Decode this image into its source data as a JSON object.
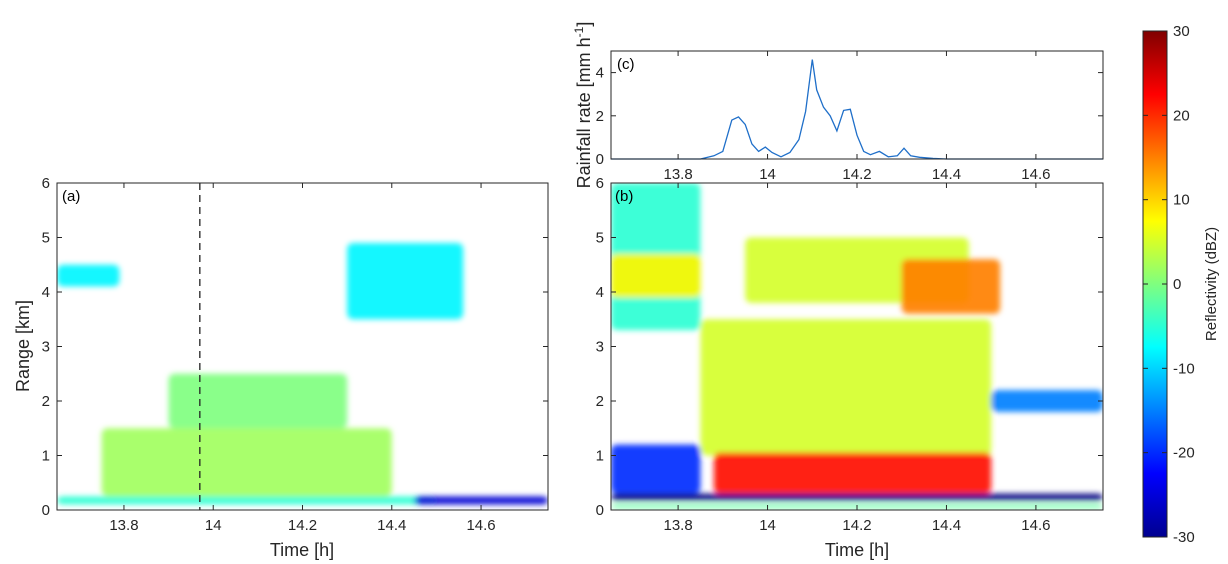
{
  "chart_data": [
    {
      "id": "a",
      "type": "heatmap",
      "panel_label": "(a)",
      "xlabel": "Time [h]",
      "ylabel": "Range [km]",
      "xlim": [
        13.65,
        14.75
      ],
      "ylim": [
        0,
        6
      ],
      "xticks": [
        13.8,
        14,
        14.2,
        14.4,
        14.6
      ],
      "xtick_labels": [
        "13.8",
        "14",
        "14.2",
        "14.4",
        "14.6"
      ],
      "yticks": [
        0,
        1,
        2,
        3,
        4,
        5,
        6
      ],
      "ytick_labels": [
        "0",
        "1",
        "2",
        "3",
        "4",
        "5",
        "6"
      ],
      "dashed_line_x": 13.97,
      "echo_regions": [
        {
          "dbz": -5,
          "x0": 13.65,
          "x1": 14.5,
          "y0": 0.1,
          "y1": 0.25
        },
        {
          "dbz": 2,
          "x0": 13.75,
          "x1": 14.4,
          "y0": 0.25,
          "y1": 1.5
        },
        {
          "dbz": 0,
          "x0": 13.9,
          "x1": 14.3,
          "y0": 1.5,
          "y1": 2.5
        },
        {
          "dbz": -8,
          "x0": 14.3,
          "x1": 14.56,
          "y0": 3.5,
          "y1": 4.9
        },
        {
          "dbz": -8,
          "x0": 13.65,
          "x1": 13.79,
          "y0": 4.1,
          "y1": 4.5
        },
        {
          "dbz": -25,
          "x0": 14.45,
          "x1": 14.75,
          "y0": 0.1,
          "y1": 0.25
        }
      ]
    },
    {
      "id": "b",
      "type": "heatmap",
      "panel_label": "(b)",
      "xlabel": "Time [h]",
      "ylabel": "",
      "xlim": [
        13.65,
        14.75
      ],
      "ylim": [
        0,
        6
      ],
      "xticks": [
        13.8,
        14,
        14.2,
        14.4,
        14.6
      ],
      "xtick_labels": [
        "13.8",
        "14",
        "14.2",
        "14.4",
        "14.6"
      ],
      "yticks": [
        0,
        1,
        2,
        3,
        4,
        5,
        6
      ],
      "ytick_labels": [
        "0",
        "1",
        "2",
        "3",
        "4",
        "5",
        "6"
      ],
      "echo_regions": [
        {
          "dbz": -5,
          "x0": 13.65,
          "x1": 13.85,
          "y0": 3.3,
          "y1": 6
        },
        {
          "dbz": 8,
          "x0": 13.65,
          "x1": 13.85,
          "y0": 3.9,
          "y1": 4.7
        },
        {
          "dbz": 5,
          "x0": 13.95,
          "x1": 14.45,
          "y0": 3.8,
          "y1": 5.0
        },
        {
          "dbz": 15,
          "x0": 14.3,
          "x1": 14.52,
          "y0": 3.6,
          "y1": 4.6
        },
        {
          "dbz": 5,
          "x0": 13.85,
          "x1": 14.5,
          "y0": 1.0,
          "y1": 3.5
        },
        {
          "dbz": 22,
          "x0": 13.88,
          "x1": 14.5,
          "y0": 0.3,
          "y1": 1.05
        },
        {
          "dbz": -20,
          "x0": 13.65,
          "x1": 13.85,
          "y0": 0.3,
          "y1": 1.2
        },
        {
          "dbz": -15,
          "x0": 14.5,
          "x1": 14.75,
          "y0": 1.8,
          "y1": 2.2
        },
        {
          "dbz": -30,
          "x0": 13.65,
          "x1": 14.75,
          "y0": 0.17,
          "y1": 0.3
        },
        {
          "dbz": -2,
          "x0": 13.65,
          "x1": 14.75,
          "y0": 0.03,
          "y1": 0.1
        }
      ]
    },
    {
      "id": "c",
      "type": "line",
      "panel_label": "(c)",
      "xlabel": "",
      "ylabel": "Rainfall rate [mm h",
      "ylabel_superscript": "-1",
      "ylabel_suffix": "]",
      "xlim": [
        13.65,
        14.75
      ],
      "ylim": [
        0,
        5
      ],
      "xticks": [
        13.8,
        14,
        14.2,
        14.4,
        14.6
      ],
      "xtick_labels": [
        "13.8",
        "14",
        "14.2",
        "14.4",
        "14.6"
      ],
      "yticks": [
        0,
        2,
        4
      ],
      "ytick_labels": [
        "0",
        "2",
        "4"
      ],
      "line_color": "#1f6fc9",
      "series": [
        {
          "x": [
            13.65,
            13.85,
            13.88,
            13.9,
            13.92,
            13.935,
            13.95,
            13.965,
            13.98,
            13.995,
            14.01,
            14.03,
            14.05,
            14.07,
            14.085,
            14.1,
            14.11,
            14.125,
            14.14,
            14.155,
            14.17,
            14.185,
            14.2,
            14.215,
            14.23,
            14.25,
            14.27,
            14.29,
            14.305,
            14.32,
            14.34,
            14.37,
            14.4,
            14.75
          ],
          "y": [
            0,
            0,
            0.15,
            0.35,
            1.8,
            1.95,
            1.6,
            0.7,
            0.35,
            0.55,
            0.3,
            0.1,
            0.3,
            0.9,
            2.2,
            4.6,
            3.2,
            2.4,
            2.0,
            1.3,
            2.25,
            2.3,
            1.1,
            0.35,
            0.2,
            0.35,
            0.1,
            0.15,
            0.5,
            0.15,
            0.08,
            0.03,
            0,
            0
          ]
        }
      ]
    }
  ],
  "colorbar": {
    "label": "Reflectivity (dBZ)",
    "min": -30,
    "max": 30,
    "ticks": [
      30,
      20,
      10,
      0,
      -10,
      -20,
      -30
    ],
    "tick_labels": [
      "30",
      "20",
      "10",
      "0",
      "-10",
      "-20",
      "-30"
    ],
    "colormap": "jet"
  }
}
